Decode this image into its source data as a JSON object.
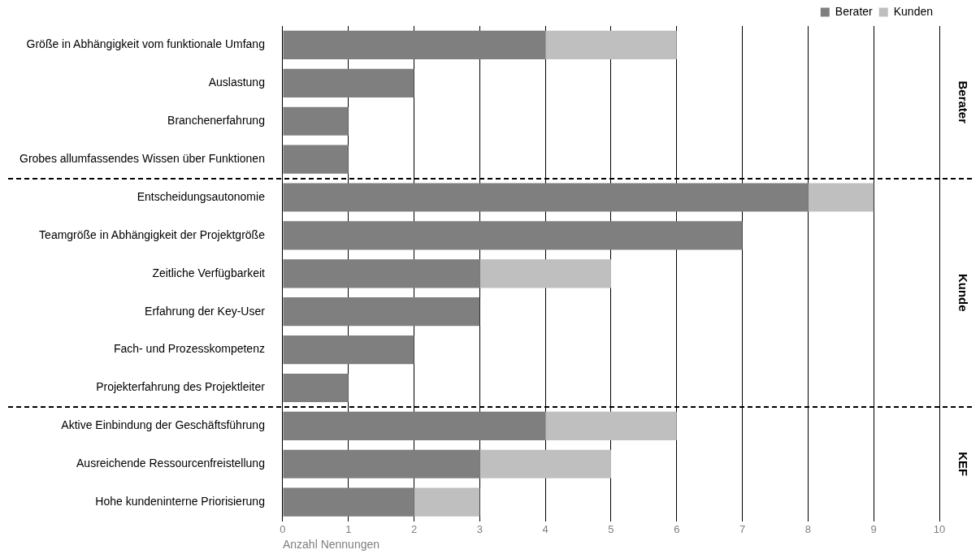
{
  "chart_data": {
    "type": "bar",
    "orientation": "horizontal",
    "stacked": true,
    "categories": [
      "Größe in Abhängigkeit vom funktionale Umfang",
      "Auslastung",
      "Branchenerfahrung",
      "Grobes allumfassendes Wissen über Funktionen",
      "Entscheidungsautonomie",
      "Teamgröße in Abhängigkeit der Projektgröße",
      "Zeitliche Verfügbarkeit",
      "Erfahrung der Key-User",
      "Fach- und Prozesskompetenz",
      "Projekterfahrung des Projektleiter",
      "Aktive Einbindung der Geschäftsführung",
      "Ausreichende Ressourcenfreistellung",
      "Hohe kundeninterne Priorisierung"
    ],
    "series": [
      {
        "name": "Berater",
        "color": "#7f7f7f",
        "values": [
          4,
          2,
          1,
          1,
          8,
          7,
          3,
          3,
          2,
          1,
          4,
          3,
          2
        ]
      },
      {
        "name": "Kunden",
        "color": "#bfbfbf",
        "values": [
          2,
          0,
          0,
          0,
          1,
          0,
          2,
          0,
          0,
          0,
          2,
          2,
          1
        ]
      }
    ],
    "xlim": [
      0,
      10
    ],
    "xticks": [
      0,
      1,
      2,
      3,
      4,
      5,
      6,
      7,
      8,
      9,
      10
    ],
    "xlabel": "Anzahl Nennungen",
    "grid": "x",
    "legend": "top right",
    "annotations": [
      "Berater",
      "Kunde",
      "KEF"
    ]
  }
}
